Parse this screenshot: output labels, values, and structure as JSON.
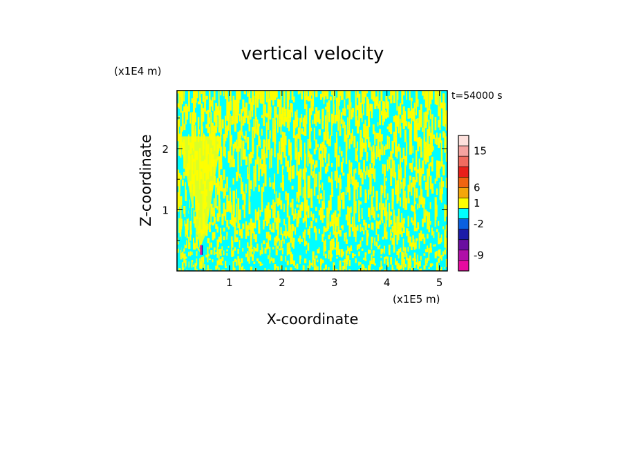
{
  "chart_data": {
    "type": "heatmap",
    "title": "vertical velocity",
    "xlabel": "X-coordinate",
    "ylabel": "Z-coordinate",
    "x_unit": "(x1E5 m)",
    "y_unit": "(x1E4 m)",
    "time_label": "t=54000 s",
    "xlim": [
      0,
      5.15
    ],
    "ylim": [
      0,
      2.95
    ],
    "x_ticks": [
      1,
      2,
      3,
      4,
      5
    ],
    "y_ticks": [
      1,
      2
    ],
    "colorbar": {
      "labeled_ticks": [
        "15",
        "6",
        "1",
        "-2",
        "-9"
      ],
      "levels": [
        {
          "color": "#fde0dc"
        },
        {
          "color": "#f5a3a0"
        },
        {
          "color": "#f06b5f"
        },
        {
          "color": "#e8201a"
        },
        {
          "color": "#f06410"
        },
        {
          "color": "#f5a60a"
        },
        {
          "color": "#ffff00"
        },
        {
          "color": "#00ffff"
        },
        {
          "color": "#0a60e0"
        },
        {
          "color": "#1c1ca8"
        },
        {
          "color": "#6a0fa0"
        },
        {
          "color": "#b00fa8"
        },
        {
          "color": "#e80aa0"
        }
      ]
    },
    "field_colors": {
      "positive": "#ffff00",
      "negative": "#00ffff"
    },
    "notes": "Field dominated by small positive (yellow) and small negative (cyan) updraft/downdraft streaks; strong plume near x=0.45 (x1E5 m)."
  }
}
